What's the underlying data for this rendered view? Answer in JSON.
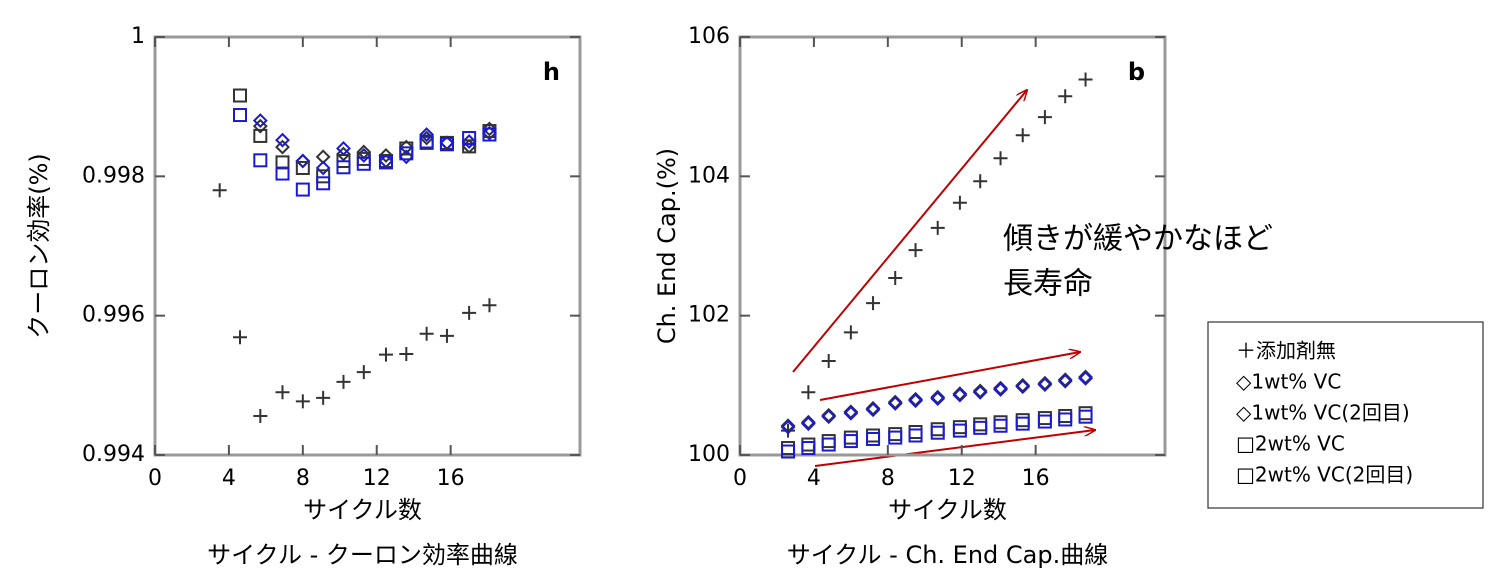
{
  "chart_data": [
    {
      "type": "scatter",
      "panel": "h",
      "ylabel": "クーロン効率(%)",
      "xlabel": "サイクル数",
      "caption": "サイクル - クーロン効率曲線",
      "xlim": [
        0,
        23
      ],
      "ylim": [
        0.994,
        1
      ],
      "xticks": [
        0,
        4,
        8,
        12,
        16
      ],
      "yticks": [
        1,
        0.998,
        0.996,
        0.994
      ],
      "x": [
        3.5,
        4.6,
        5.7,
        6.9,
        8,
        9.1,
        10.2,
        11.3,
        12.5,
        13.6,
        14.7,
        15.8,
        17,
        18.1
      ],
      "series": [
        {
          "marker": "plus",
          "color": "#333333",
          "values": [
            0.9978,
            0.99569,
            0.99456,
            0.9949,
            0.99477,
            0.99482,
            0.99505,
            0.99519,
            0.99544,
            0.99545,
            0.99574,
            0.99571,
            0.99604,
            0.99615
          ]
        },
        {
          "marker": "diamond",
          "color": "#333333",
          "values": [
            null,
            null,
            0.99872,
            0.99842,
            0.99822,
            0.99828,
            0.99832,
            0.99835,
            0.9983,
            0.99842,
            0.99855,
            0.99848,
            0.99843,
            0.99868
          ]
        },
        {
          "marker": "diamond",
          "color": "#1a1ad6",
          "values": [
            null,
            null,
            0.9988,
            0.99852,
            0.99822,
            0.99812,
            0.9984,
            0.9983,
            0.99822,
            0.99828,
            0.9986,
            0.99848,
            0.9985,
            0.99862
          ]
        },
        {
          "marker": "square",
          "color": "#333333",
          "values": [
            null,
            0.99916,
            0.99858,
            0.9982,
            0.99812,
            0.998,
            0.99822,
            0.99825,
            0.99822,
            0.9984,
            0.99848,
            0.99848,
            0.99843,
            0.99865
          ]
        },
        {
          "marker": "square",
          "color": "#1a1ad6",
          "values": [
            null,
            0.99888,
            0.99823,
            0.99804,
            0.99781,
            0.9979,
            0.99813,
            0.99818,
            0.9982,
            0.99833,
            0.9985,
            0.99846,
            0.99855,
            0.9986
          ]
        }
      ]
    },
    {
      "type": "scatter",
      "panel": "b",
      "ylabel": "Ch. End Cap.(%)",
      "xlabel": "サイクル数",
      "caption": "サイクル - Ch. End Cap.曲線",
      "xlim": [
        0,
        23
      ],
      "ylim": [
        100,
        106
      ],
      "xticks": [
        0,
        4,
        8,
        12,
        16
      ],
      "yticks": [
        106,
        104,
        102,
        100
      ],
      "annotation": {
        "lines": [
          "傾きが緩やかなほど",
          "長寿命"
        ],
        "color": "#c00000"
      },
      "x": [
        2.6,
        3.7,
        4.8,
        6.0,
        7.2,
        8.4,
        9.5,
        10.7,
        11.9,
        13.0,
        14.1,
        15.3,
        16.5,
        17.6,
        18.7
      ],
      "series": [
        {
          "name": "＋添加剤無",
          "marker": "plus",
          "color": "#333333",
          "values": [
            100.35,
            100.9,
            101.35,
            101.76,
            102.18,
            102.54,
            102.94,
            103.26,
            103.62,
            103.93,
            104.26,
            104.59,
            104.85,
            105.15,
            105.39
          ]
        },
        {
          "name": "◇1wt% VC",
          "marker": "diamond",
          "color": "#333333",
          "values": [
            100.42,
            100.47,
            100.57,
            100.62,
            100.67,
            100.76,
            100.8,
            100.83,
            100.88,
            100.92,
            100.96,
            101.0,
            101.03,
            101.08,
            101.12
          ]
        },
        {
          "name": "◇1wt% VC(2回目)",
          "marker": "diamond",
          "color": "#1a1ad6",
          "values": [
            100.4,
            100.45,
            100.55,
            100.6,
            100.65,
            100.74,
            100.78,
            100.81,
            100.86,
            100.9,
            100.94,
            100.98,
            101.01,
            101.06,
            101.1
          ]
        },
        {
          "name": "□2wt% VC",
          "marker": "square",
          "color": "#333333",
          "values": [
            100.1,
            100.15,
            100.2,
            100.25,
            100.28,
            100.3,
            100.33,
            100.37,
            100.4,
            100.44,
            100.47,
            100.5,
            100.53,
            100.56,
            100.6
          ]
        },
        {
          "name": "□2wt% VC(2回目)",
          "marker": "square",
          "color": "#1a1ad6",
          "values": [
            100.05,
            100.1,
            100.15,
            100.2,
            100.23,
            100.25,
            100.28,
            100.32,
            100.35,
            100.39,
            100.42,
            100.45,
            100.48,
            100.51,
            100.55
          ]
        }
      ]
    }
  ]
}
